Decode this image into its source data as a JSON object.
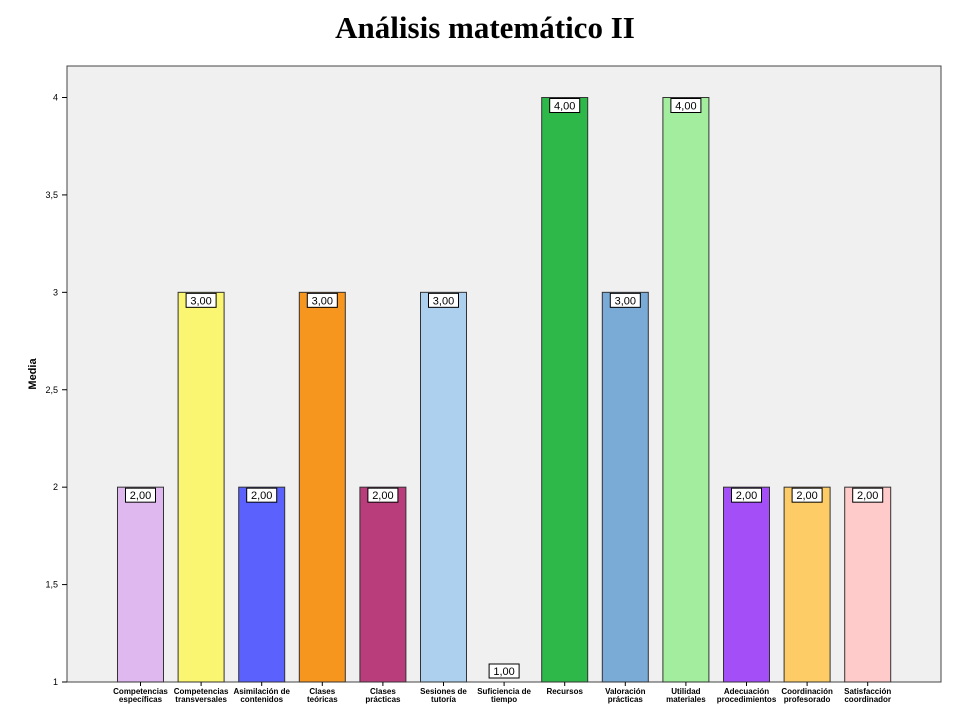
{
  "chart_data": {
    "type": "bar",
    "title": "Análisis matemático II",
    "ylabel": "Media",
    "xlabel": "",
    "ylim": [
      1,
      4.1
    ],
    "yticks": [
      "1",
      "1,5",
      "2",
      "2,5",
      "3",
      "3,5",
      "4"
    ],
    "yticks_values": [
      1,
      1.5,
      2,
      2.5,
      3,
      3.5,
      4
    ],
    "grid": false,
    "categories": [
      [
        "Competencias",
        "específicas"
      ],
      [
        "Competencias",
        "transversales"
      ],
      [
        "Asimilación de",
        "contenidos"
      ],
      [
        "Clases",
        "teóricas"
      ],
      [
        "Clases",
        "prácticas"
      ],
      [
        "Sesiones de",
        "tutoría"
      ],
      [
        "Suficiencia de",
        "tiempo"
      ],
      [
        "Recursos"
      ],
      [
        "Valoración",
        "prácticas"
      ],
      [
        "Utilidad",
        "materiales"
      ],
      [
        "Adecuación",
        "procedimientos"
      ],
      [
        "Coordinación",
        "profesorado"
      ],
      [
        "Satisfacción",
        "coordinador"
      ]
    ],
    "values": [
      2,
      3,
      2,
      3,
      2,
      3,
      1,
      4,
      3,
      4,
      2,
      2,
      2
    ],
    "value_labels": [
      "2,00",
      "3,00",
      "2,00",
      "3,00",
      "2,00",
      "3,00",
      "1,00",
      "4,00",
      "3,00",
      "4,00",
      "2,00",
      "2,00",
      "2,00"
    ],
    "colors": [
      "#e0b8f0",
      "#fbf672",
      "#5b61fc",
      "#f7961f",
      "#b83d7a",
      "#acd0ee",
      "#e8e8e8",
      "#2eb84a",
      "#7aaad6",
      "#a2ee9e",
      "#a34ef7",
      "#fecc66",
      "#fecaca"
    ]
  }
}
